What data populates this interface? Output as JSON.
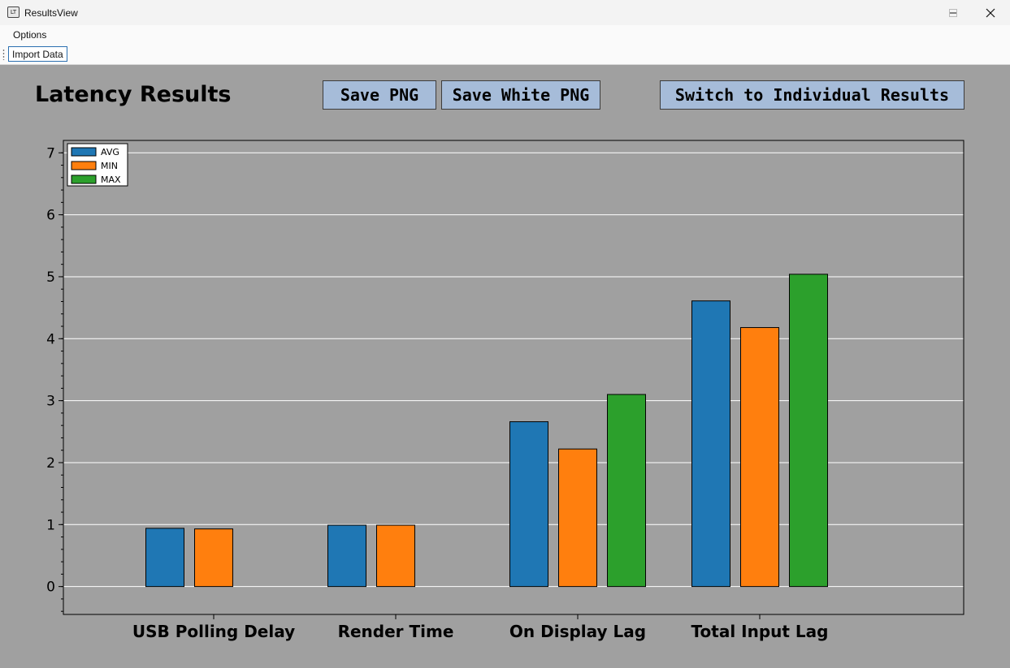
{
  "window": {
    "title": "ResultsView",
    "icon": "app-icon",
    "icon_text": "LT"
  },
  "menu": {
    "items": [
      "Options"
    ]
  },
  "toolbar": {
    "import_label": "Import Data"
  },
  "header": {
    "title": "Latency Results",
    "save_png": "Save PNG",
    "save_white_png": "Save White PNG",
    "switch": "Switch to Individual Results"
  },
  "colors": {
    "avg": "#1f77b4",
    "min": "#ff7f0e",
    "max": "#2ca02c",
    "plot_bg": "#a0a0a0",
    "grid": "#ffffff"
  },
  "chart_data": {
    "type": "bar",
    "categories": [
      "USB Polling Delay",
      "Render Time",
      "On Display Lag",
      "Total Input Lag"
    ],
    "series": [
      {
        "name": "AVG",
        "values": [
          0.94,
          0.99,
          2.66,
          4.61
        ]
      },
      {
        "name": "MIN",
        "values": [
          0.93,
          0.99,
          2.22,
          4.18
        ]
      },
      {
        "name": "MAX",
        "values": [
          null,
          null,
          3.1,
          5.04
        ]
      }
    ],
    "yticks": [
      "0",
      "1",
      "2",
      "3",
      "4",
      "5",
      "6",
      "7"
    ],
    "ylim": [
      -0.45,
      7.2
    ],
    "grid": "horizontal",
    "legend": "top-left"
  }
}
